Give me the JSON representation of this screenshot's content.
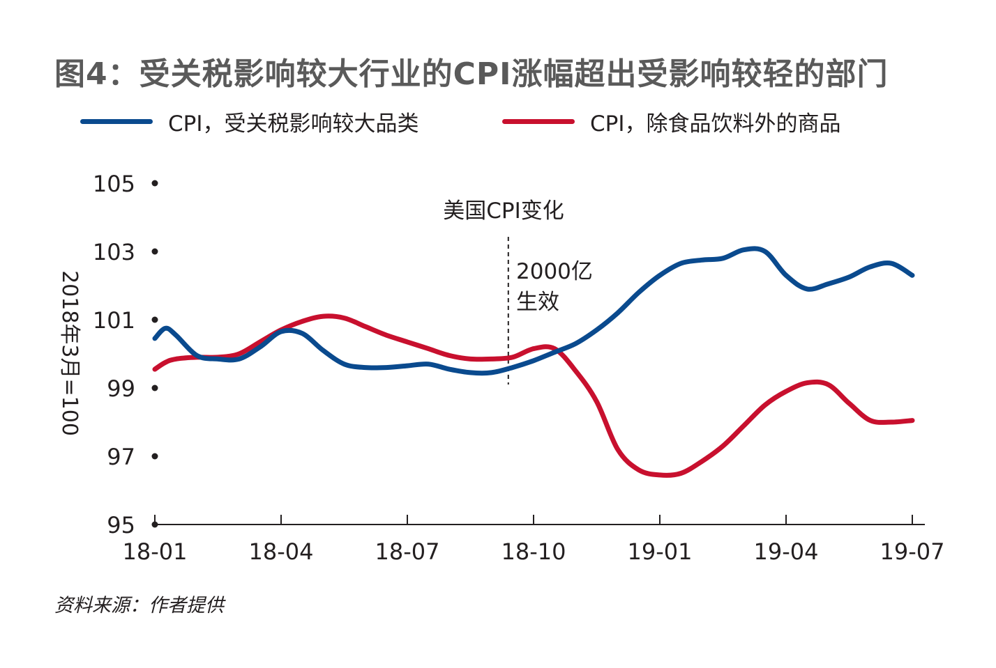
{
  "title": "图4：受关税影响较大行业的CPI涨幅超出受影响较轻的部门",
  "source": "资料来源：作者提供",
  "colors": {
    "blue": "#0a4a8e",
    "red": "#c8102e",
    "axis": "#231f20"
  },
  "chart_data": {
    "type": "line",
    "title": "图4：受关税影响较大行业的CPI涨幅超出受影响较轻的部门",
    "ylabel": "2018年3月=100",
    "xlabel": "",
    "ylim": [
      95,
      105
    ],
    "yticks": [
      95,
      97,
      99,
      101,
      103,
      105
    ],
    "xticks": [
      "18-01",
      "18-04",
      "18-07",
      "18-10",
      "19-01",
      "19-04",
      "19-07"
    ],
    "legend_position": "top",
    "x": [
      0,
      0.25,
      0.5,
      1,
      1.5,
      2,
      2.5,
      3,
      3.5,
      4,
      4.5,
      5,
      5.5,
      6,
      6.5,
      7,
      7.5,
      8,
      8.5,
      9,
      9.5,
      10,
      10.5,
      11,
      11.5,
      12,
      12.5,
      13,
      13.5,
      14,
      14.5,
      15,
      15.5,
      16,
      16.5,
      17,
      17.5,
      18
    ],
    "series": [
      {
        "name": "CPI，受关税影响较大品类",
        "color": "#0a4a8e",
        "values": [
          100.45,
          100.75,
          100.55,
          99.95,
          99.85,
          99.85,
          100.2,
          100.65,
          100.6,
          100.1,
          99.7,
          99.6,
          99.6,
          99.65,
          99.7,
          99.55,
          99.45,
          99.45,
          99.6,
          99.8,
          100.05,
          100.3,
          100.7,
          101.2,
          101.8,
          102.3,
          102.65,
          102.75,
          102.8,
          103.05,
          103.0,
          102.3,
          101.9,
          102.05,
          102.25,
          102.55,
          102.65,
          102.3
        ]
      },
      {
        "name": "CPI，除食品饮料外的商品",
        "color": "#c8102e",
        "values": [
          99.55,
          99.75,
          99.85,
          99.9,
          99.9,
          100.0,
          100.35,
          100.7,
          100.95,
          101.1,
          101.05,
          100.8,
          100.55,
          100.35,
          100.15,
          99.95,
          99.85,
          99.85,
          99.9,
          100.15,
          100.15,
          99.5,
          98.6,
          97.2,
          96.6,
          96.45,
          96.5,
          96.85,
          97.3,
          97.9,
          98.5,
          98.9,
          99.15,
          99.1,
          98.55,
          98.05,
          98.0,
          98.05
        ]
      }
    ],
    "annotations": [
      {
        "text": "美国CPI变化",
        "x": 9.5
      },
      {
        "text": "2000亿",
        "x": 9.5
      },
      {
        "text": "生效",
        "x": 9.5
      }
    ],
    "event_line_x": 8.4
  }
}
